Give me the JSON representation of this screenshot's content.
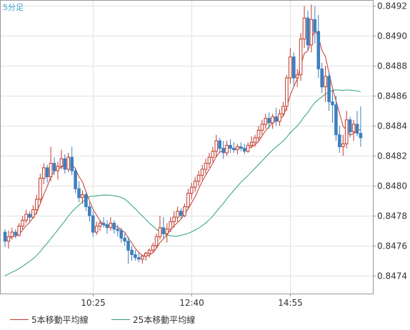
{
  "chart_data": {
    "type": "candlestick",
    "timeframe_label": "5分足",
    "y_range": [
      0.84728,
      0.84924
    ],
    "y_ticks": [
      {
        "value": 0.8474,
        "label": "0.8474"
      },
      {
        "value": 0.8476,
        "label": "0.8476"
      },
      {
        "value": 0.8478,
        "label": "0.8478"
      },
      {
        "value": 0.848,
        "label": "0.8480"
      },
      {
        "value": 0.8482,
        "label": "0.8482"
      },
      {
        "value": 0.8484,
        "label": "0.8484"
      },
      {
        "value": 0.8486,
        "label": "0.8486"
      },
      {
        "value": 0.8488,
        "label": "0.8488"
      },
      {
        "value": 0.849,
        "label": "0.8490"
      },
      {
        "value": 0.8492,
        "label": "0.8492"
      }
    ],
    "x_ticks": [
      {
        "index": 25,
        "label": "10:25"
      },
      {
        "index": 53,
        "label": "12:40"
      },
      {
        "index": 81,
        "label": "14:55"
      }
    ],
    "candles": [
      [
        0.84769,
        0.84771,
        0.84759,
        0.84763
      ],
      [
        0.84763,
        0.8477,
        0.84758,
        0.84766
      ],
      [
        0.84766,
        0.84772,
        0.84764,
        0.84769
      ],
      [
        0.84769,
        0.84771,
        0.84765,
        0.84767
      ],
      [
        0.84767,
        0.84775,
        0.84766,
        0.84773
      ],
      [
        0.84773,
        0.8478,
        0.84771,
        0.84777
      ],
      [
        0.84777,
        0.84784,
        0.84775,
        0.84781
      ],
      [
        0.84781,
        0.84783,
        0.84776,
        0.84779
      ],
      [
        0.84779,
        0.84787,
        0.84778,
        0.84784
      ],
      [
        0.84784,
        0.84794,
        0.84781,
        0.84791
      ],
      [
        0.84791,
        0.84808,
        0.84789,
        0.84805
      ],
      [
        0.84805,
        0.84815,
        0.84801,
        0.84812
      ],
      [
        0.84812,
        0.84814,
        0.84802,
        0.84806
      ],
      [
        0.84806,
        0.84826,
        0.84803,
        0.84815
      ],
      [
        0.84815,
        0.84819,
        0.84807,
        0.8481
      ],
      [
        0.8481,
        0.84816,
        0.84804,
        0.84813
      ],
      [
        0.84813,
        0.84824,
        0.84811,
        0.84818
      ],
      [
        0.84818,
        0.84821,
        0.84808,
        0.84811
      ],
      [
        0.84811,
        0.84822,
        0.84809,
        0.84819
      ],
      [
        0.84819,
        0.84826,
        0.84807,
        0.8481
      ],
      [
        0.8481,
        0.84812,
        0.84795,
        0.84798
      ],
      [
        0.84798,
        0.84803,
        0.84789,
        0.84792
      ],
      [
        0.84792,
        0.84797,
        0.84788,
        0.84794
      ],
      [
        0.84794,
        0.84796,
        0.84783,
        0.84786
      ],
      [
        0.84786,
        0.84789,
        0.84776,
        0.8478
      ],
      [
        0.8478,
        0.84783,
        0.84766,
        0.84769
      ],
      [
        0.84769,
        0.84776,
        0.84767,
        0.84773
      ],
      [
        0.84773,
        0.84777,
        0.8477,
        0.84775
      ],
      [
        0.84775,
        0.84779,
        0.84772,
        0.84774
      ],
      [
        0.84774,
        0.84777,
        0.84768,
        0.84772
      ],
      [
        0.84772,
        0.84779,
        0.8477,
        0.84775
      ],
      [
        0.84775,
        0.84777,
        0.84768,
        0.84771
      ],
      [
        0.84771,
        0.84774,
        0.84766,
        0.8477
      ],
      [
        0.8477,
        0.84772,
        0.84762,
        0.84765
      ],
      [
        0.84765,
        0.84768,
        0.8476,
        0.84763
      ],
      [
        0.84763,
        0.84766,
        0.84748,
        0.84757
      ],
      [
        0.84757,
        0.8476,
        0.8475,
        0.84754
      ],
      [
        0.84754,
        0.84757,
        0.8475,
        0.84752
      ],
      [
        0.84752,
        0.84755,
        0.84749,
        0.84751
      ],
      [
        0.84751,
        0.84754,
        0.84748,
        0.84753
      ],
      [
        0.84753,
        0.84756,
        0.8475,
        0.84755
      ],
      [
        0.84755,
        0.84758,
        0.84752,
        0.84757
      ],
      [
        0.84757,
        0.84762,
        0.84755,
        0.8476
      ],
      [
        0.8476,
        0.84768,
        0.84758,
        0.84766
      ],
      [
        0.84766,
        0.8478,
        0.84764,
        0.84772
      ],
      [
        0.84772,
        0.84779,
        0.84765,
        0.84768
      ],
      [
        0.84768,
        0.84775,
        0.84762,
        0.84771
      ],
      [
        0.84771,
        0.84779,
        0.84769,
        0.84776
      ],
      [
        0.84776,
        0.84783,
        0.84772,
        0.84779
      ],
      [
        0.84779,
        0.84786,
        0.84776,
        0.84783
      ],
      [
        0.84783,
        0.84785,
        0.84778,
        0.8478
      ],
      [
        0.8478,
        0.84788,
        0.84779,
        0.84786
      ],
      [
        0.84786,
        0.84798,
        0.84784,
        0.84795
      ],
      [
        0.84795,
        0.84802,
        0.84791,
        0.84799
      ],
      [
        0.84799,
        0.84806,
        0.84796,
        0.84803
      ],
      [
        0.84803,
        0.8481,
        0.848,
        0.84807
      ],
      [
        0.84807,
        0.84814,
        0.84804,
        0.84811
      ],
      [
        0.84811,
        0.84818,
        0.84808,
        0.84815
      ],
      [
        0.84815,
        0.84822,
        0.84812,
        0.84819
      ],
      [
        0.84819,
        0.84826,
        0.84816,
        0.84823
      ],
      [
        0.84823,
        0.84834,
        0.84819,
        0.8483
      ],
      [
        0.8483,
        0.84832,
        0.84822,
        0.84825
      ],
      [
        0.84825,
        0.8483,
        0.84818,
        0.84822
      ],
      [
        0.84822,
        0.8483,
        0.8482,
        0.84827
      ],
      [
        0.84827,
        0.84831,
        0.84822,
        0.84825
      ],
      [
        0.84825,
        0.84829,
        0.84822,
        0.84824
      ],
      [
        0.84824,
        0.84828,
        0.84821,
        0.84826
      ],
      [
        0.84826,
        0.84829,
        0.84823,
        0.84825
      ],
      [
        0.84825,
        0.84828,
        0.84821,
        0.84823
      ],
      [
        0.84823,
        0.84829,
        0.84822,
        0.84827
      ],
      [
        0.84827,
        0.84833,
        0.84825,
        0.84829
      ],
      [
        0.84829,
        0.84834,
        0.84826,
        0.84832
      ],
      [
        0.84832,
        0.8484,
        0.8483,
        0.84837
      ],
      [
        0.84837,
        0.84844,
        0.84834,
        0.84841
      ],
      [
        0.84841,
        0.84848,
        0.84838,
        0.84845
      ],
      [
        0.84845,
        0.84849,
        0.84838,
        0.84842
      ],
      [
        0.84842,
        0.84848,
        0.84838,
        0.84846
      ],
      [
        0.84846,
        0.84852,
        0.8484,
        0.84843
      ],
      [
        0.84843,
        0.84851,
        0.8484,
        0.84848
      ],
      [
        0.84848,
        0.84856,
        0.84846,
        0.84853
      ],
      [
        0.84853,
        0.84874,
        0.8485,
        0.84872
      ],
      [
        0.84872,
        0.84892,
        0.84868,
        0.84886
      ],
      [
        0.84886,
        0.84889,
        0.84867,
        0.84872
      ],
      [
        0.84872,
        0.84878,
        0.84866,
        0.84874
      ],
      [
        0.84874,
        0.84902,
        0.8487,
        0.84898
      ],
      [
        0.84898,
        0.8492,
        0.84892,
        0.84912
      ],
      [
        0.84912,
        0.84917,
        0.8489,
        0.84894
      ],
      [
        0.84894,
        0.84921,
        0.84889,
        0.84911
      ],
      [
        0.84911,
        0.8492,
        0.84895,
        0.84903
      ],
      [
        0.84903,
        0.84914,
        0.84872,
        0.84878
      ],
      [
        0.84878,
        0.84882,
        0.84862,
        0.84866
      ],
      [
        0.84866,
        0.8488,
        0.84856,
        0.84873
      ],
      [
        0.84873,
        0.84876,
        0.8485,
        0.84856
      ],
      [
        0.84856,
        0.84864,
        0.84842,
        0.84854
      ],
      [
        0.84854,
        0.8486,
        0.8483,
        0.84834
      ],
      [
        0.84834,
        0.8484,
        0.84822,
        0.84826
      ],
      [
        0.84826,
        0.84834,
        0.8482,
        0.84828
      ],
      [
        0.84828,
        0.8485,
        0.84825,
        0.84844
      ],
      [
        0.84844,
        0.84846,
        0.84832,
        0.84836
      ],
      [
        0.84836,
        0.84844,
        0.8483,
        0.84841
      ],
      [
        0.84841,
        0.8485,
        0.84833,
        0.84835
      ],
      [
        0.84835,
        0.84853,
        0.84826,
        0.84832
      ]
    ],
    "ma_series": [
      {
        "name": "5本移動平均線",
        "period": 5,
        "color": "#c0392b"
      },
      {
        "name": "25本移動平均線",
        "period": 25,
        "color": "#2e9e7a",
        "start": 0.84739
      }
    ],
    "up_color": "#c0392b",
    "down_color": "#3f7fbf",
    "grid": true
  }
}
